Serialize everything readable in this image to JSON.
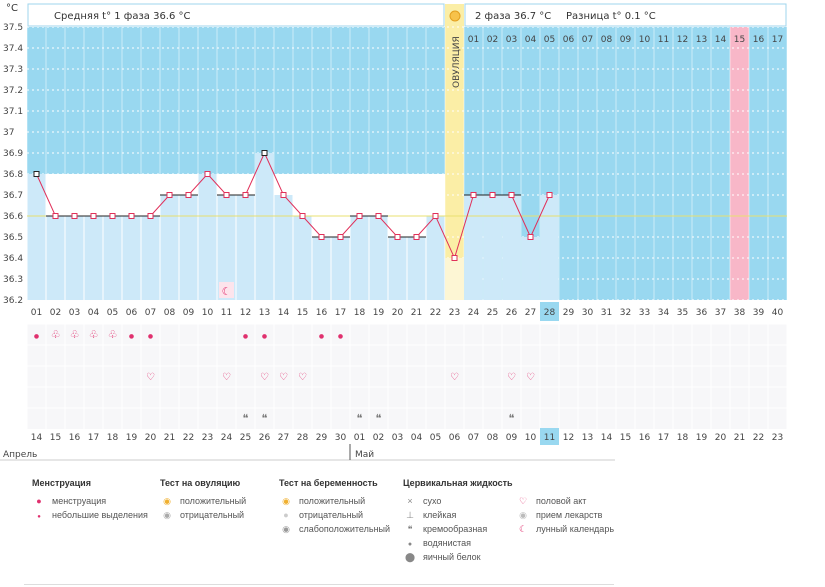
{
  "chart_data": {
    "type": "line",
    "unit_label": "°C",
    "header": {
      "phase1": "Средняя t° 1 фаза 36.6 °C",
      "phase2": "2 фаза 36.7 °C",
      "diff": "Разница t° 0.1 °C"
    },
    "ovulation_label": "ОВУЛЯЦИЯ",
    "ovulation_day": 23,
    "coverline": 36.6,
    "ylim": [
      36.2,
      37.5
    ],
    "yticks": [
      "36.2",
      "36.3",
      "36.4",
      "36.5",
      "36.6",
      "36.7",
      "36.8",
      "36.9",
      "37",
      "37.1",
      "37.2",
      "37.3",
      "37.4",
      "37.5"
    ],
    "cycle_days": [
      "01",
      "02",
      "03",
      "04",
      "05",
      "06",
      "07",
      "08",
      "09",
      "10",
      "11",
      "12",
      "13",
      "14",
      "15",
      "16",
      "17",
      "18",
      "19",
      "20",
      "21",
      "22",
      "23",
      "24",
      "25",
      "26",
      "27",
      "28",
      "29",
      "30",
      "31",
      "32",
      "33",
      "34",
      "35",
      "36",
      "37",
      "38",
      "39",
      "40"
    ],
    "current_day": 28,
    "highlight_day": 38,
    "luteal_day_numbers": [
      "01",
      "02",
      "03",
      "04",
      "05",
      "06",
      "07",
      "08",
      "09",
      "10",
      "11",
      "12",
      "13",
      "14",
      "15",
      "16",
      "17"
    ],
    "temps": [
      36.8,
      36.6,
      36.6,
      36.6,
      36.6,
      36.6,
      36.6,
      36.7,
      36.7,
      36.8,
      36.7,
      36.7,
      36.9,
      36.7,
      36.6,
      36.5,
      36.5,
      36.6,
      36.6,
      36.5,
      36.5,
      36.6,
      36.4,
      36.7,
      36.7,
      36.7,
      36.5,
      36.7
    ],
    "calendar_dates": [
      "14",
      "15",
      "16",
      "17",
      "18",
      "19",
      "20",
      "21",
      "22",
      "23",
      "24",
      "25",
      "26",
      "27",
      "28",
      "29",
      "30",
      "01",
      "02",
      "03",
      "04",
      "05",
      "06",
      "07",
      "08",
      "09",
      "10",
      "11",
      "12",
      "13",
      "14",
      "15",
      "16",
      "17",
      "18",
      "19",
      "20",
      "21",
      "22",
      "23"
    ],
    "weekend_days": [
      6,
      7,
      13,
      14,
      20,
      21,
      27,
      28,
      34,
      35
    ],
    "current_date": "11",
    "month_start": "Апрель",
    "month_next": "Май",
    "month_next_day": 18,
    "events": {
      "moon": [
        11
      ],
      "menstruation": [
        2,
        3,
        4,
        5
      ],
      "spotting": [
        1,
        6,
        7,
        12,
        13,
        16,
        17
      ],
      "sex": [
        7,
        11,
        13,
        14,
        15,
        23,
        26,
        27
      ],
      "creamy": [
        12,
        13,
        18,
        19,
        26
      ]
    },
    "colors": {
      "luteal_bg": "#99d8f0",
      "bar": "#cde9f9",
      "ovulation": "#fbeea6",
      "pink": "#f8b7c8",
      "line": "#e0305a",
      "accent": "#e0306e"
    },
    "legend": {
      "menstruation": {
        "title": "Менструация",
        "items": [
          "менструация",
          "небольшие выделения"
        ]
      },
      "ovulation_test": {
        "title": "Тест на овуляцию",
        "items": [
          "положительный",
          "отрицательный"
        ]
      },
      "pregnancy_test": {
        "title": "Тест на беременность",
        "items": [
          "положительный",
          "отрицательный",
          "слабоположительный"
        ]
      },
      "cervical": {
        "title": "Цервикальная жидкость",
        "items": [
          "сухо",
          "клейкая",
          "кремообразная",
          "водянистая",
          "яичный белок"
        ]
      },
      "other": {
        "items": [
          "половой акт",
          "прием лекарств",
          "лунный календарь"
        ]
      }
    }
  }
}
